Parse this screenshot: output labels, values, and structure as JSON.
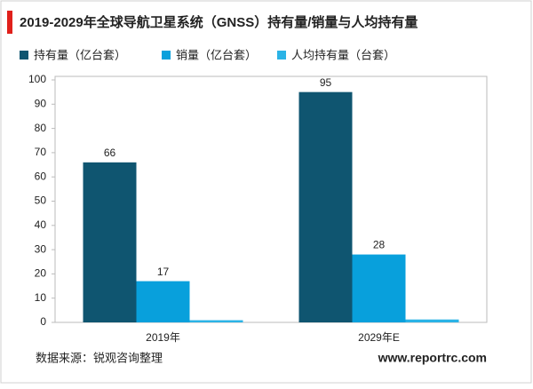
{
  "chart_data": {
    "type": "bar",
    "title": "2019-2029年全球导航卫星系统（GNSS）持有量/销量与人均持有量",
    "categories": [
      "2019年",
      "2029年E"
    ],
    "series": [
      {
        "name": "持有量（亿台套）",
        "color": "#0f5570",
        "values": [
          66,
          95
        ]
      },
      {
        "name": "销量（亿台套）",
        "color": "#08a0dc",
        "values": [
          17,
          28
        ]
      },
      {
        "name": "人均持有量（台套）",
        "color": "#2bb3e6",
        "values": [
          0.9,
          1.2
        ]
      }
    ],
    "labeled_series": [
      0,
      1
    ],
    "ylim": [
      0,
      100
    ],
    "yticks": [
      0,
      10,
      20,
      30,
      40,
      50,
      60,
      70,
      80,
      90,
      100
    ],
    "source": "数据来源：锐观咨询整理",
    "website": "www.reportrc.com"
  }
}
